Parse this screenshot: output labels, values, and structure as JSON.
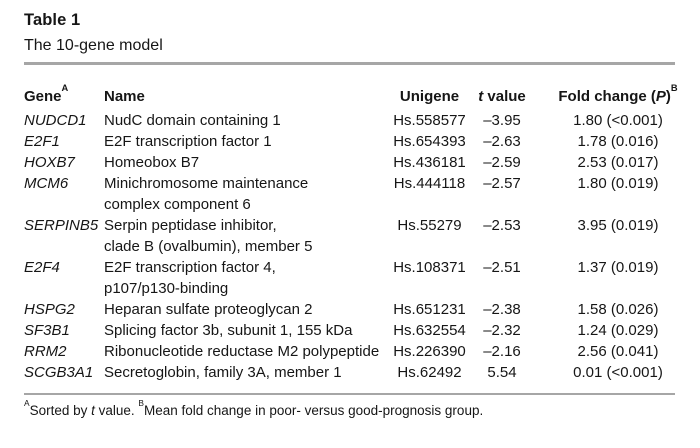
{
  "colors": {
    "text": "#161616",
    "rule": "#a6a6a6",
    "bg": "#ffffff"
  },
  "header": {
    "table_label": "Table 1",
    "subtitle": "The 10-gene model"
  },
  "columns": {
    "gene": {
      "label": "Gene",
      "sup": "A"
    },
    "name": {
      "label": "Name"
    },
    "unigene": {
      "label": "Unigene"
    },
    "t_value": {
      "italic": "t",
      "rest": " value"
    },
    "fold": {
      "pre": "Fold change (",
      "italic": "P",
      "post": ")",
      "sup": "B"
    }
  },
  "table": {
    "lines": [
      {
        "gene": "NUDCD1",
        "name": "NudC domain containing 1",
        "unigene": "Hs.558577",
        "t": "–3.95",
        "fold": "1.80 (<0.001)"
      },
      {
        "gene": "E2F1",
        "name": "E2F transcription factor 1",
        "unigene": "Hs.654393",
        "t": "–2.63",
        "fold": "1.78 (0.016)"
      },
      {
        "gene": "HOXB7",
        "name": "Homeobox B7",
        "unigene": "Hs.436181",
        "t": "–2.59",
        "fold": "2.53 (0.017)"
      },
      {
        "gene": "MCM6",
        "name": "Minichromosome maintenance",
        "unigene": "Hs.444118",
        "t": "–2.57",
        "fold": "1.80 (0.019)"
      },
      {
        "gene": "",
        "name": "complex component 6",
        "unigene": "",
        "t": "",
        "fold": ""
      },
      {
        "gene": "SERPINB5",
        "name": "Serpin peptidase inhibitor,",
        "unigene": "Hs.55279",
        "t": "–2.53",
        "fold": "3.95 (0.019)"
      },
      {
        "gene": "",
        "name": "clade B (ovalbumin), member 5",
        "unigene": "",
        "t": "",
        "fold": ""
      },
      {
        "gene": "E2F4",
        "name": "E2F transcription factor 4,",
        "unigene": "Hs.108371",
        "t": "–2.51",
        "fold": "1.37 (0.019)"
      },
      {
        "gene": "",
        "name": "p107/p130-binding",
        "unigene": "",
        "t": "",
        "fold": ""
      },
      {
        "gene": "HSPG2",
        "name": "Heparan sulfate proteoglycan 2",
        "unigene": "Hs.651231",
        "t": "–2.38",
        "fold": "1.58 (0.026)"
      },
      {
        "gene": "SF3B1",
        "name": "Splicing factor 3b, subunit 1, 155 kDa",
        "unigene": "Hs.632554",
        "t": "–2.32",
        "fold": "1.24 (0.029)"
      },
      {
        "gene": "RRM2",
        "name": "Ribonucleotide reductase M2 polypeptide",
        "unigene": "Hs.226390",
        "t": "–2.16",
        "fold": "2.56 (0.041)"
      },
      {
        "gene": "SCGB3A1",
        "name": "Secretoglobin, family 3A, member 1",
        "unigene": "Hs.62492",
        "t": "5.54",
        "fold": "0.01 (<0.001)"
      }
    ]
  },
  "footnote": {
    "sup_a": "A",
    "text_a": "Sorted by ",
    "italic_t": "t",
    "text_a2": " value. ",
    "sup_b": "B",
    "text_b": "Mean fold change in poor- versus good-prognosis group."
  }
}
